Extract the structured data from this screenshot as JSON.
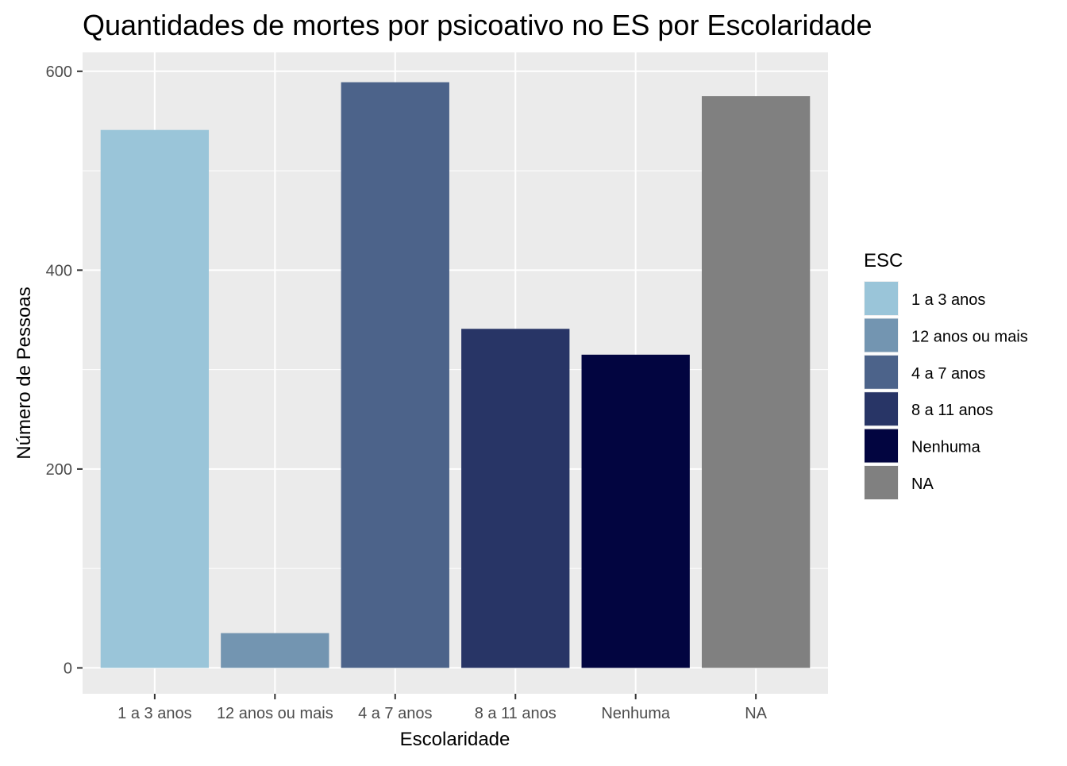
{
  "chart_data": {
    "type": "bar",
    "title": "Quantidades de mortes por psicoativo no ES por Escolaridade",
    "xlabel": "Escolaridade",
    "ylabel": "Número de Pessoas",
    "categories": [
      "1 a 3 anos",
      "12 anos ou mais",
      "4 a 7 anos",
      "8 a 11 anos",
      "Nenhuma",
      "NA"
    ],
    "values": [
      541,
      35,
      589,
      341,
      315,
      575
    ],
    "colors": [
      "#9ac5d9",
      "#7395b1",
      "#4c638a",
      "#283566",
      "#020540",
      "#808080"
    ],
    "ylim": [
      -26,
      619
    ],
    "yticks": [
      0,
      200,
      400,
      600
    ],
    "grid": true,
    "panel_background": "#ebebeb",
    "grid_color": "#ffffff",
    "legend": {
      "title": "ESC",
      "placement": "right",
      "entries": [
        "1 a 3 anos",
        "12 anos ou mais",
        "4 a 7 anos",
        "8 a 11 anos",
        "Nenhuma",
        "NA"
      ]
    }
  }
}
